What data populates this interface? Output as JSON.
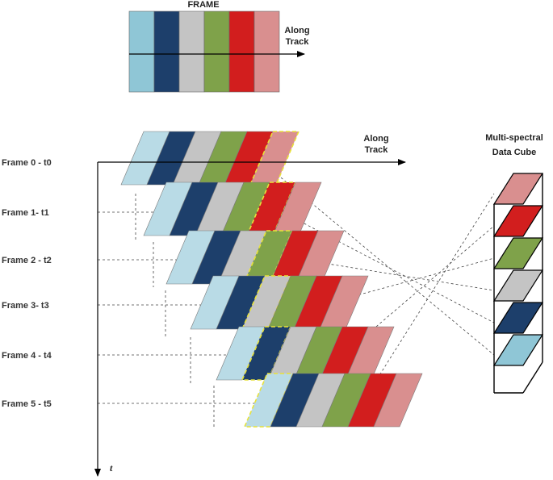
{
  "title": "FRAME",
  "along_track_label_line1": "Along",
  "along_track_label_line2": "Track",
  "time_axis_label": "t",
  "cube_title_line1": "Multi-spectral",
  "cube_title_line2": "Data Cube",
  "bands": [
    {
      "name": "band-1",
      "color": "#8fc6d6",
      "light": "#b9dbe6"
    },
    {
      "name": "band-2",
      "color": "#1d3f6b",
      "light": "#1d3f6b"
    },
    {
      "name": "band-3",
      "color": "#c4c4c4",
      "light": "#b4b4b4"
    },
    {
      "name": "band-4",
      "color": "#7fa24a",
      "light": "#7fa24a"
    },
    {
      "name": "band-5",
      "color": "#d21e1e",
      "light": "#d21e1e"
    },
    {
      "name": "band-6",
      "color": "#d98f8f",
      "light": "#d98f8f"
    }
  ],
  "frames": [
    {
      "label": "Frame 0 - t0",
      "highlight_band": 5
    },
    {
      "label": "Frame 1- t1",
      "highlight_band": 4
    },
    {
      "label": "Frame 2 - t2",
      "highlight_band": 3
    },
    {
      "label": "Frame 3-  t3",
      "highlight_band": 2
    },
    {
      "label": "Frame 4 -  t4",
      "highlight_band": 1
    },
    {
      "label": "Frame 5 - t5",
      "highlight_band": 0
    }
  ]
}
